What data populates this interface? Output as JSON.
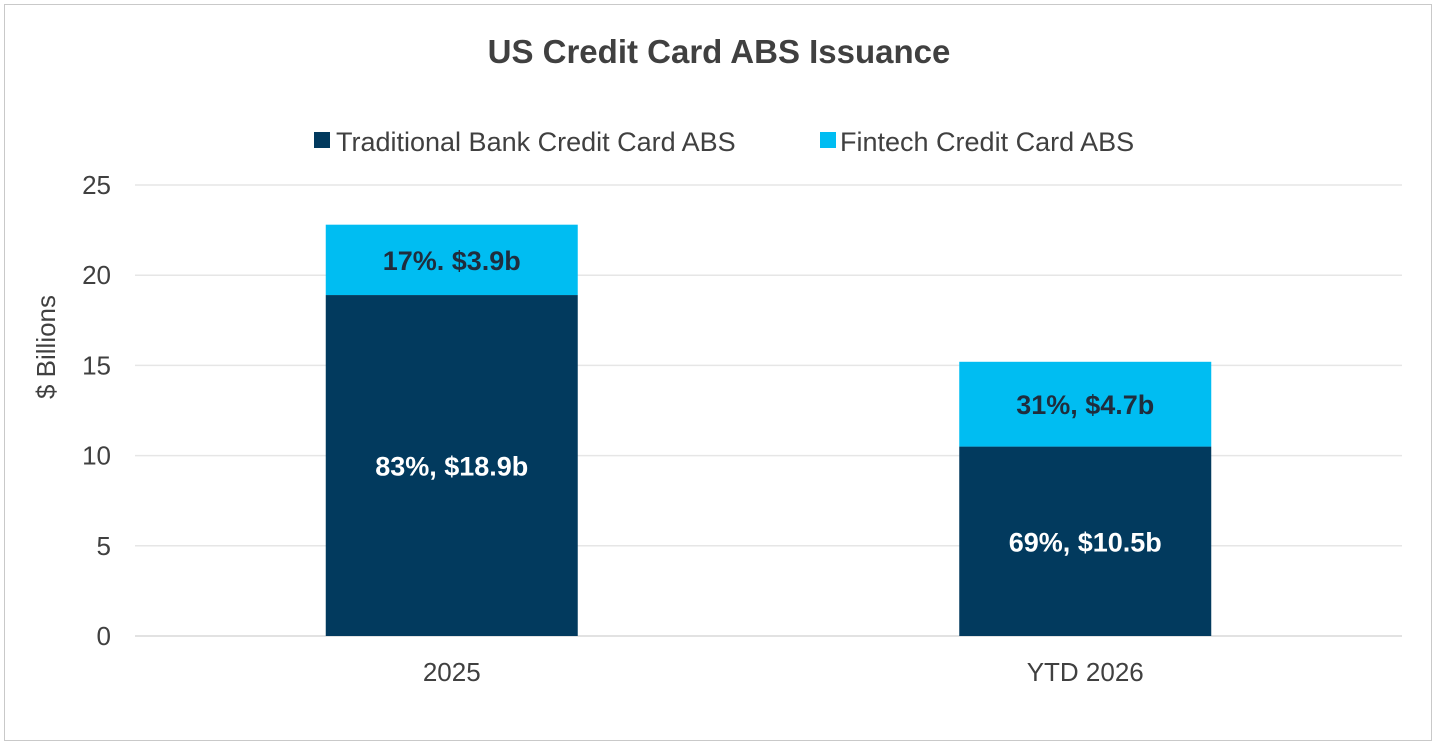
{
  "chart_data": {
    "type": "bar",
    "stacked": true,
    "title": "US Credit Card ABS Issuance",
    "xlabel": "",
    "ylabel": "$ Billions",
    "ylim": [
      0,
      25
    ],
    "yticks": [
      0,
      5,
      10,
      15,
      20,
      25
    ],
    "grid": true,
    "legend_position": "top",
    "categories": [
      "2025",
      "YTD 2026"
    ],
    "series": [
      {
        "name": "Traditional Bank Credit Card ABS",
        "color": "#023a5e",
        "values": [
          18.9,
          10.5
        ],
        "labels": [
          "83%, $18.9b",
          "69%, $10.5b"
        ],
        "label_color": "#ffffff"
      },
      {
        "name": "Fintech Credit Card ABS",
        "color": "#00bdf2",
        "values": [
          3.9,
          4.7
        ],
        "labels": [
          "17%. $3.9b",
          "31%, $4.7b"
        ],
        "label_color": "#1f2d3d"
      }
    ]
  }
}
